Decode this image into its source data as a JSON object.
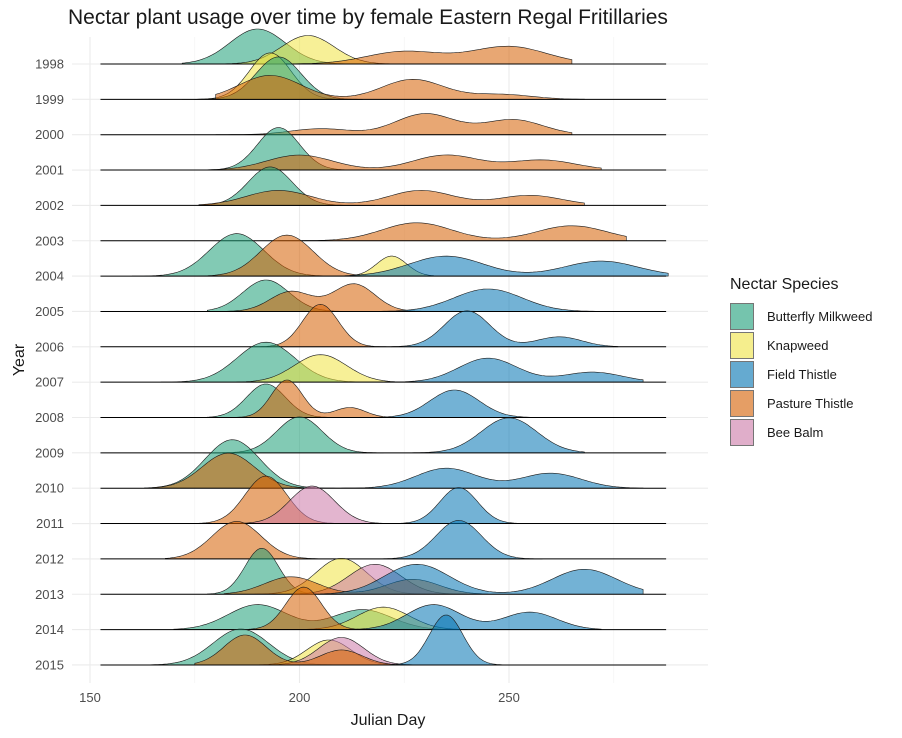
{
  "chart_data": {
    "type": "ridgeline",
    "title": "Nectar plant usage over time by female Eastern Regal Fritillaries",
    "xlabel": "Julian Day",
    "ylabel": "Year",
    "xlim": [
      148,
      290
    ],
    "x_ticks": [
      150,
      200,
      250
    ],
    "grid": true,
    "legend": {
      "title": "Nectar Species",
      "position": "right"
    },
    "categories": [
      "1998",
      "1999",
      "2000",
      "2001",
      "2002",
      "2003",
      "2004",
      "2005",
      "2006",
      "2007",
      "2008",
      "2009",
      "2010",
      "2011",
      "2012",
      "2013",
      "2014",
      "2015"
    ],
    "series": [
      {
        "name": "Butterfly Milkweed",
        "color": "#1b9e77"
      },
      {
        "name": "Knapweed",
        "color": "#f0e442"
      },
      {
        "name": "Field Thistle",
        "color": "#0072b2"
      },
      {
        "name": "Pasture Thistle",
        "color": "#d55e00"
      },
      {
        "name": "Bee Balm",
        "color": "#cc79a7"
      }
    ],
    "density_peaks": {
      "1998": [
        {
          "series": "Butterfly Milkweed",
          "range": [
            172,
            225
          ],
          "peaks": [
            [
              190,
              0.7
            ]
          ]
        },
        {
          "series": "Knapweed",
          "range": [
            175,
            225
          ],
          "peaks": [
            [
              202,
              0.57
            ]
          ]
        },
        {
          "series": "Pasture Thistle",
          "range": [
            175,
            265
          ],
          "peaks": [
            [
              225,
              0.25
            ],
            [
              250,
              0.35
            ]
          ]
        }
      ],
      "1999": [
        {
          "series": "Knapweed",
          "range": [
            175,
            215
          ],
          "peaks": [
            [
              193,
              0.93
            ]
          ]
        },
        {
          "series": "Butterfly Milkweed",
          "range": [
            172,
            215
          ],
          "peaks": [
            [
              195,
              0.85
            ]
          ]
        },
        {
          "series": "Pasture Thistle",
          "range": [
            180,
            268
          ],
          "peaks": [
            [
              193,
              0.48
            ],
            [
              227,
              0.4
            ],
            [
              248,
              0.1
            ]
          ]
        }
      ],
      "2000": [
        {
          "series": "Pasture Thistle",
          "range": [
            180,
            265
          ],
          "peaks": [
            [
              205,
              0.12
            ],
            [
              230,
              0.42
            ],
            [
              251,
              0.3
            ]
          ]
        }
      ],
      "2001": [
        {
          "series": "Butterfly Milkweed",
          "range": [
            178,
            218
          ],
          "peaks": [
            [
              195,
              0.85
            ]
          ]
        },
        {
          "series": "Pasture Thistle",
          "range": [
            178,
            272
          ],
          "peaks": [
            [
              200,
              0.3
            ],
            [
              235,
              0.3
            ],
            [
              258,
              0.2
            ]
          ]
        }
      ],
      "2002": [
        {
          "series": "Butterfly Milkweed",
          "range": [
            176,
            218
          ],
          "peaks": [
            [
              193,
              0.77
            ]
          ]
        },
        {
          "series": "Pasture Thistle",
          "range": [
            176,
            268
          ],
          "peaks": [
            [
              195,
              0.3
            ],
            [
              229,
              0.3
            ],
            [
              255,
              0.2
            ]
          ]
        }
      ],
      "2003": [
        {
          "series": "Pasture Thistle",
          "range": [
            195,
            278
          ],
          "peaks": [
            [
              228,
              0.36
            ],
            [
              265,
              0.3
            ]
          ]
        }
      ],
      "2004": [
        {
          "series": "Butterfly Milkweed",
          "range": [
            160,
            212
          ],
          "peaks": [
            [
              185,
              0.85
            ]
          ]
        },
        {
          "series": "Pasture Thistle",
          "range": [
            172,
            222
          ],
          "peaks": [
            [
              197,
              0.82
            ]
          ]
        },
        {
          "series": "Knapweed",
          "range": [
            212,
            232
          ],
          "peaks": [
            [
              222,
              0.4
            ]
          ]
        },
        {
          "series": "Field Thistle",
          "range": [
            200,
            288
          ],
          "peaks": [
            [
              235,
              0.4
            ],
            [
              272,
              0.3
            ]
          ]
        }
      ],
      "2005": [
        {
          "series": "Butterfly Milkweed",
          "range": [
            178,
            222
          ],
          "peaks": [
            [
              192,
              0.63
            ]
          ]
        },
        {
          "series": "Pasture Thistle",
          "range": [
            182,
            232
          ],
          "peaks": [
            [
              213,
              0.55
            ],
            [
              198,
              0.4
            ]
          ]
        },
        {
          "series": "Field Thistle",
          "range": [
            210,
            275
          ],
          "peaks": [
            [
              245,
              0.45
            ]
          ]
        }
      ],
      "2006": [
        {
          "series": "Pasture Thistle",
          "range": [
            188,
            222
          ],
          "peaks": [
            [
              205,
              0.85
            ]
          ]
        },
        {
          "series": "Field Thistle",
          "range": [
            222,
            276
          ],
          "peaks": [
            [
              240,
              0.72
            ],
            [
              262,
              0.2
            ]
          ]
        }
      ],
      "2007": [
        {
          "series": "Butterfly Milkweed",
          "range": [
            167,
            222
          ],
          "peaks": [
            [
              192,
              0.8
            ]
          ]
        },
        {
          "series": "Knapweed",
          "range": [
            185,
            235
          ],
          "peaks": [
            [
              205,
              0.55
            ]
          ]
        },
        {
          "series": "Field Thistle",
          "range": [
            212,
            282
          ],
          "peaks": [
            [
              245,
              0.48
            ],
            [
              270,
              0.2
            ]
          ]
        }
      ],
      "2008": [
        {
          "series": "Butterfly Milkweed",
          "range": [
            178,
            215
          ],
          "peaks": [
            [
              192,
              0.67
            ]
          ]
        },
        {
          "series": "Pasture Thistle",
          "range": [
            185,
            222
          ],
          "peaks": [
            [
              197,
              0.75
            ],
            [
              212,
              0.2
            ]
          ]
        },
        {
          "series": "Field Thistle",
          "range": [
            218,
            265
          ],
          "peaks": [
            [
              237,
              0.55
            ]
          ]
        }
      ],
      "2009": [
        {
          "series": "Butterfly Milkweed",
          "range": [
            177,
            220
          ],
          "peaks": [
            [
              200,
              0.72
            ]
          ]
        },
        {
          "series": "Field Thistle",
          "range": [
            215,
            268
          ],
          "peaks": [
            [
              250,
              0.7
            ]
          ]
        }
      ],
      "2010": [
        {
          "series": "Butterfly Milkweed",
          "range": [
            163,
            215
          ],
          "peaks": [
            [
              184,
              0.97
            ]
          ]
        },
        {
          "series": "Pasture Thistle",
          "range": [
            165,
            215
          ],
          "peaks": [
            [
              183,
              0.7
            ]
          ]
        },
        {
          "series": "Field Thistle",
          "range": [
            210,
            282
          ],
          "peaks": [
            [
              235,
              0.4
            ],
            [
              260,
              0.3
            ]
          ]
        }
      ],
      "2011": [
        {
          "series": "Pasture Thistle",
          "range": [
            175,
            215
          ],
          "peaks": [
            [
              192,
              0.95
            ]
          ]
        },
        {
          "series": "Bee Balm",
          "range": [
            185,
            228
          ],
          "peaks": [
            [
              203,
              0.75
            ]
          ]
        },
        {
          "series": "Field Thistle",
          "range": [
            222,
            258
          ],
          "peaks": [
            [
              238,
              0.72
            ]
          ]
        }
      ],
      "2012": [
        {
          "series": "Pasture Thistle",
          "range": [
            168,
            215
          ],
          "peaks": [
            [
              185,
              0.75
            ]
          ]
        },
        {
          "series": "Field Thistle",
          "range": [
            215,
            258
          ],
          "peaks": [
            [
              238,
              0.77
            ]
          ]
        }
      ],
      "2013": [
        {
          "series": "Butterfly Milkweed",
          "range": [
            178,
            210
          ],
          "peaks": [
            [
              191,
              0.92
            ]
          ]
        },
        {
          "series": "Knapweed",
          "range": [
            182,
            230
          ],
          "peaks": [
            [
              210,
              0.72
            ]
          ]
        },
        {
          "series": "Bee Balm",
          "range": [
            190,
            240
          ],
          "peaks": [
            [
              218,
              0.6
            ]
          ]
        },
        {
          "series": "Pasture Thistle",
          "range": [
            182,
            245
          ],
          "peaks": [
            [
              198,
              0.35
            ],
            [
              227,
              0.3
            ]
          ]
        },
        {
          "series": "Field Thistle",
          "range": [
            205,
            282
          ],
          "peaks": [
            [
              228,
              0.6
            ],
            [
              268,
              0.5
            ]
          ]
        }
      ],
      "2014": [
        {
          "series": "Butterfly Milkweed",
          "range": [
            170,
            240
          ],
          "peaks": [
            [
              190,
              0.5
            ],
            [
              215,
              0.4
            ]
          ]
        },
        {
          "series": "Knapweed",
          "range": [
            190,
            240
          ],
          "peaks": [
            [
              220,
              0.45
            ]
          ]
        },
        {
          "series": "Field Thistle",
          "range": [
            208,
            272
          ],
          "peaks": [
            [
              232,
              0.5
            ],
            [
              255,
              0.35
            ]
          ]
        },
        {
          "series": "Pasture Thistle",
          "range": [
            188,
            222
          ],
          "peaks": [
            [
              201,
              0.85
            ]
          ]
        }
      ],
      "2015": [
        {
          "series": "Butterfly Milkweed",
          "range": [
            162,
            215
          ],
          "peaks": [
            [
              186,
              0.72
            ]
          ]
        },
        {
          "series": "Knapweed",
          "range": [
            180,
            222
          ],
          "peaks": [
            [
              207,
              0.5
            ]
          ]
        },
        {
          "series": "Bee Balm",
          "range": [
            185,
            228
          ],
          "peaks": [
            [
              210,
              0.55
            ]
          ]
        },
        {
          "series": "Pasture Thistle",
          "range": [
            175,
            225
          ],
          "peaks": [
            [
              187,
              0.6
            ],
            [
              210,
              0.3
            ]
          ]
        },
        {
          "series": "Field Thistle",
          "range": [
            220,
            252
          ],
          "peaks": [
            [
              235,
              1.0
            ]
          ]
        }
      ]
    }
  }
}
